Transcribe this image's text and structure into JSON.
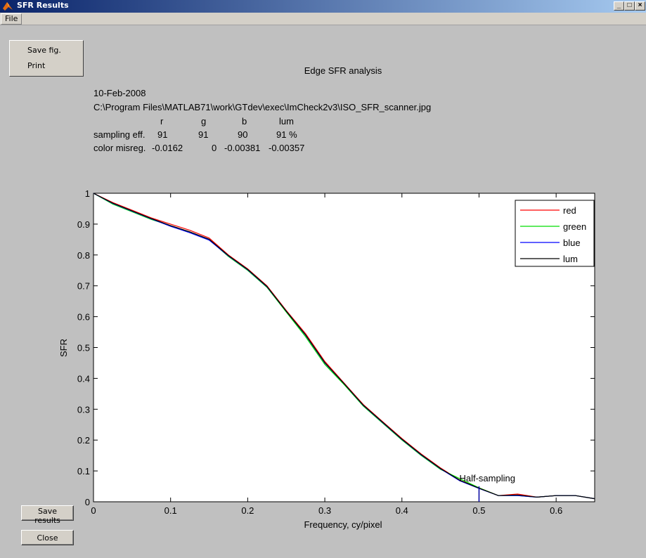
{
  "window": {
    "title": "SFR Results",
    "controls": [
      "_",
      "□",
      "×"
    ]
  },
  "menu": {
    "file": "File"
  },
  "figure_menu": {
    "save_fig": "Save fig.",
    "print": "Print"
  },
  "buttons": {
    "save_results": "Save results",
    "close": "Close"
  },
  "info": {
    "date": "10-Feb-2008",
    "path": "C:\\Program Files\\MATLAB71\\work\\GTdev\\exec\\ImCheck2v3\\ISO_SFR_scanner.jpg",
    "col_r": "r",
    "col_g": "g",
    "col_b": "b",
    "col_lum": "lum",
    "sampling_label": "sampling eff.",
    "sampling_r": "91",
    "sampling_g": "91",
    "sampling_b": "90",
    "sampling_lum": "91 %",
    "misreg_label": "color misreg.",
    "misreg_r": "-0.0162",
    "misreg_g": "0",
    "misreg_b": "-0.00381",
    "misreg_lum": "-0.00357"
  },
  "colors": {
    "red": "#ff0000",
    "green": "#00dd00",
    "blue": "#0000ff",
    "lum": "#000000",
    "half_marker": "#0000a0"
  },
  "chart_data": {
    "type": "line",
    "title": "Edge SFR analysis",
    "xlabel": "Frequency, cy/pixel",
    "ylabel": "SFR",
    "xlim": [
      0,
      0.65
    ],
    "ylim": [
      0,
      1
    ],
    "xticks": [
      0,
      0.1,
      0.2,
      0.3,
      0.4,
      0.5,
      0.6
    ],
    "xtick_labels": [
      "0",
      "0.1",
      "0.2",
      "0.3",
      "0.4",
      "0.5",
      "0.6"
    ],
    "yticks": [
      0,
      0.1,
      0.2,
      0.3,
      0.4,
      0.5,
      0.6,
      0.7,
      0.8,
      0.9,
      1
    ],
    "ytick_labels": [
      "0",
      "0.1",
      "0.2",
      "0.3",
      "0.4",
      "0.5",
      "0.6",
      "0.7",
      "0.8",
      "0.9",
      "1"
    ],
    "legend_position": "top-right",
    "grid": false,
    "annotation": {
      "text": "Half-sampling",
      "x": 0.5,
      "y": 0.05
    },
    "x": [
      0,
      0.025,
      0.05,
      0.075,
      0.1,
      0.125,
      0.15,
      0.175,
      0.2,
      0.225,
      0.25,
      0.275,
      0.3,
      0.325,
      0.35,
      0.375,
      0.4,
      0.425,
      0.45,
      0.475,
      0.5,
      0.525,
      0.55,
      0.575,
      0.6,
      0.625,
      0.65
    ],
    "series": [
      {
        "name": "red",
        "color": "#ff0000",
        "values": [
          1.0,
          0.97,
          0.945,
          0.92,
          0.9,
          0.88,
          0.855,
          0.8,
          0.755,
          0.7,
          0.62,
          0.545,
          0.455,
          0.385,
          0.315,
          0.26,
          0.205,
          0.155,
          0.11,
          0.07,
          0.045,
          0.02,
          0.025,
          0.015,
          0.02,
          0.02,
          0.01
        ]
      },
      {
        "name": "green",
        "color": "#00dd00",
        "values": [
          1.0,
          0.965,
          0.94,
          0.915,
          0.895,
          0.875,
          0.85,
          0.795,
          0.75,
          0.695,
          0.615,
          0.535,
          0.445,
          0.38,
          0.31,
          0.255,
          0.2,
          0.15,
          0.105,
          0.075,
          0.045,
          0.02,
          0.02,
          0.015,
          0.02,
          0.02,
          0.01
        ]
      },
      {
        "name": "blue",
        "color": "#0000ff",
        "values": [
          1.0,
          0.967,
          0.942,
          0.917,
          0.893,
          0.872,
          0.848,
          0.797,
          0.752,
          0.697,
          0.618,
          0.54,
          0.45,
          0.383,
          0.312,
          0.257,
          0.202,
          0.152,
          0.107,
          0.068,
          0.043,
          0.02,
          0.02,
          0.015,
          0.02,
          0.02,
          0.01
        ]
      },
      {
        "name": "lum",
        "color": "#000000",
        "values": [
          1.0,
          0.968,
          0.943,
          0.918,
          0.895,
          0.875,
          0.851,
          0.798,
          0.753,
          0.698,
          0.618,
          0.541,
          0.451,
          0.383,
          0.313,
          0.258,
          0.203,
          0.153,
          0.108,
          0.07,
          0.044,
          0.02,
          0.022,
          0.015,
          0.02,
          0.02,
          0.01
        ]
      }
    ]
  }
}
